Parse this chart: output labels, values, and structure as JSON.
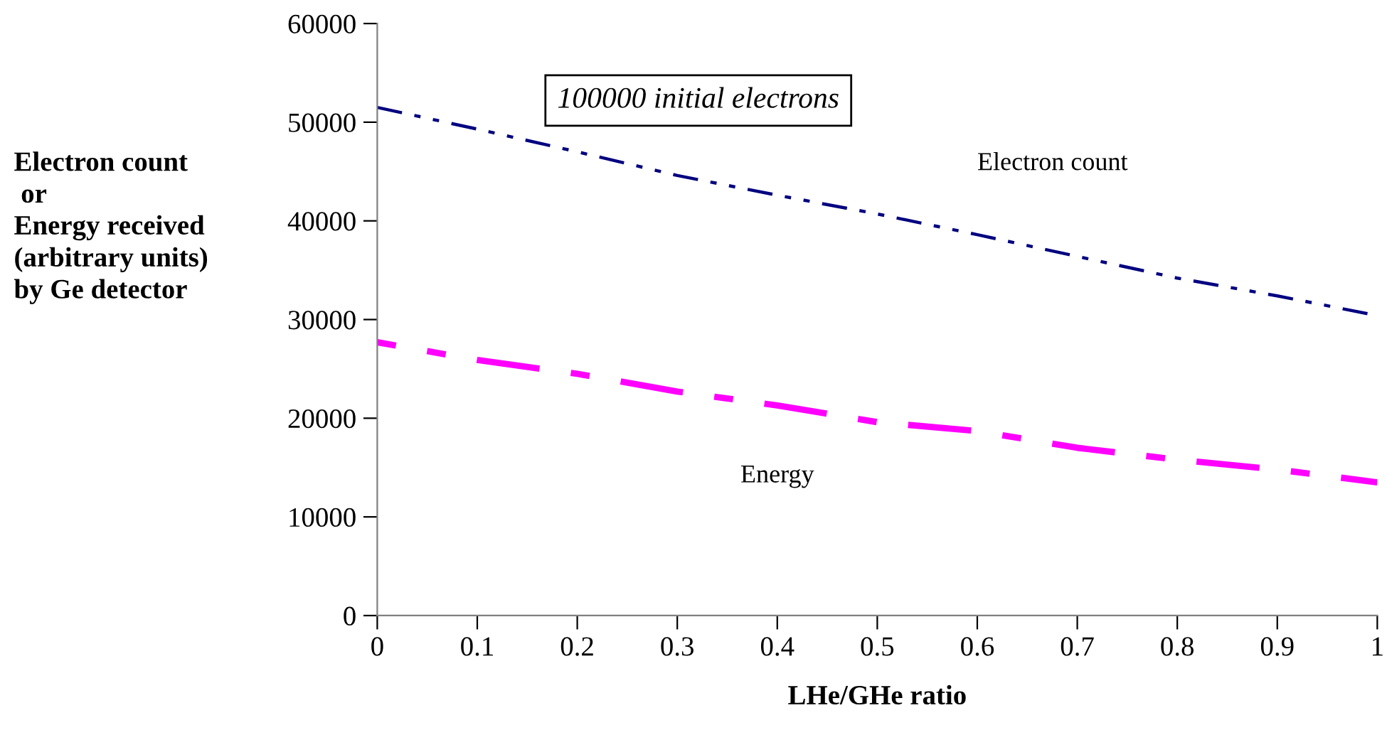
{
  "chart_data": {
    "type": "line",
    "xlabel": "LHe/GHe ratio",
    "ylabel": "Electron count\n or\nEnergy received\n(arbitrary units)\nby Ge detector",
    "annotations": [
      "100000 initial electrons"
    ],
    "x": [
      0,
      0.1,
      0.2,
      0.3,
      0.4,
      0.5,
      0.6,
      0.7,
      0.8,
      0.9,
      1
    ],
    "series": [
      {
        "name": "Electron count",
        "color": "#000080",
        "line_style": "dashed",
        "values": [
          51500,
          49300,
          47000,
          44600,
          42600,
          40700,
          38600,
          36400,
          34200,
          32400,
          30400
        ]
      },
      {
        "name": "Energy",
        "color": "#ff00ff",
        "line_style": "dashed",
        "values": [
          27700,
          25900,
          24500,
          22700,
          21300,
          19600,
          18700,
          17000,
          15800,
          14800,
          13500
        ]
      }
    ],
    "xlim": [
      0,
      1
    ],
    "xticks": [
      0,
      0.1,
      0.2,
      0.3,
      0.4,
      0.5,
      0.6,
      0.7,
      0.8,
      0.9,
      1
    ],
    "ylim": [
      0,
      60000
    ],
    "yticks": [
      0,
      10000,
      20000,
      30000,
      40000,
      50000,
      60000
    ],
    "grid": false,
    "legend": false,
    "marker": "none"
  }
}
